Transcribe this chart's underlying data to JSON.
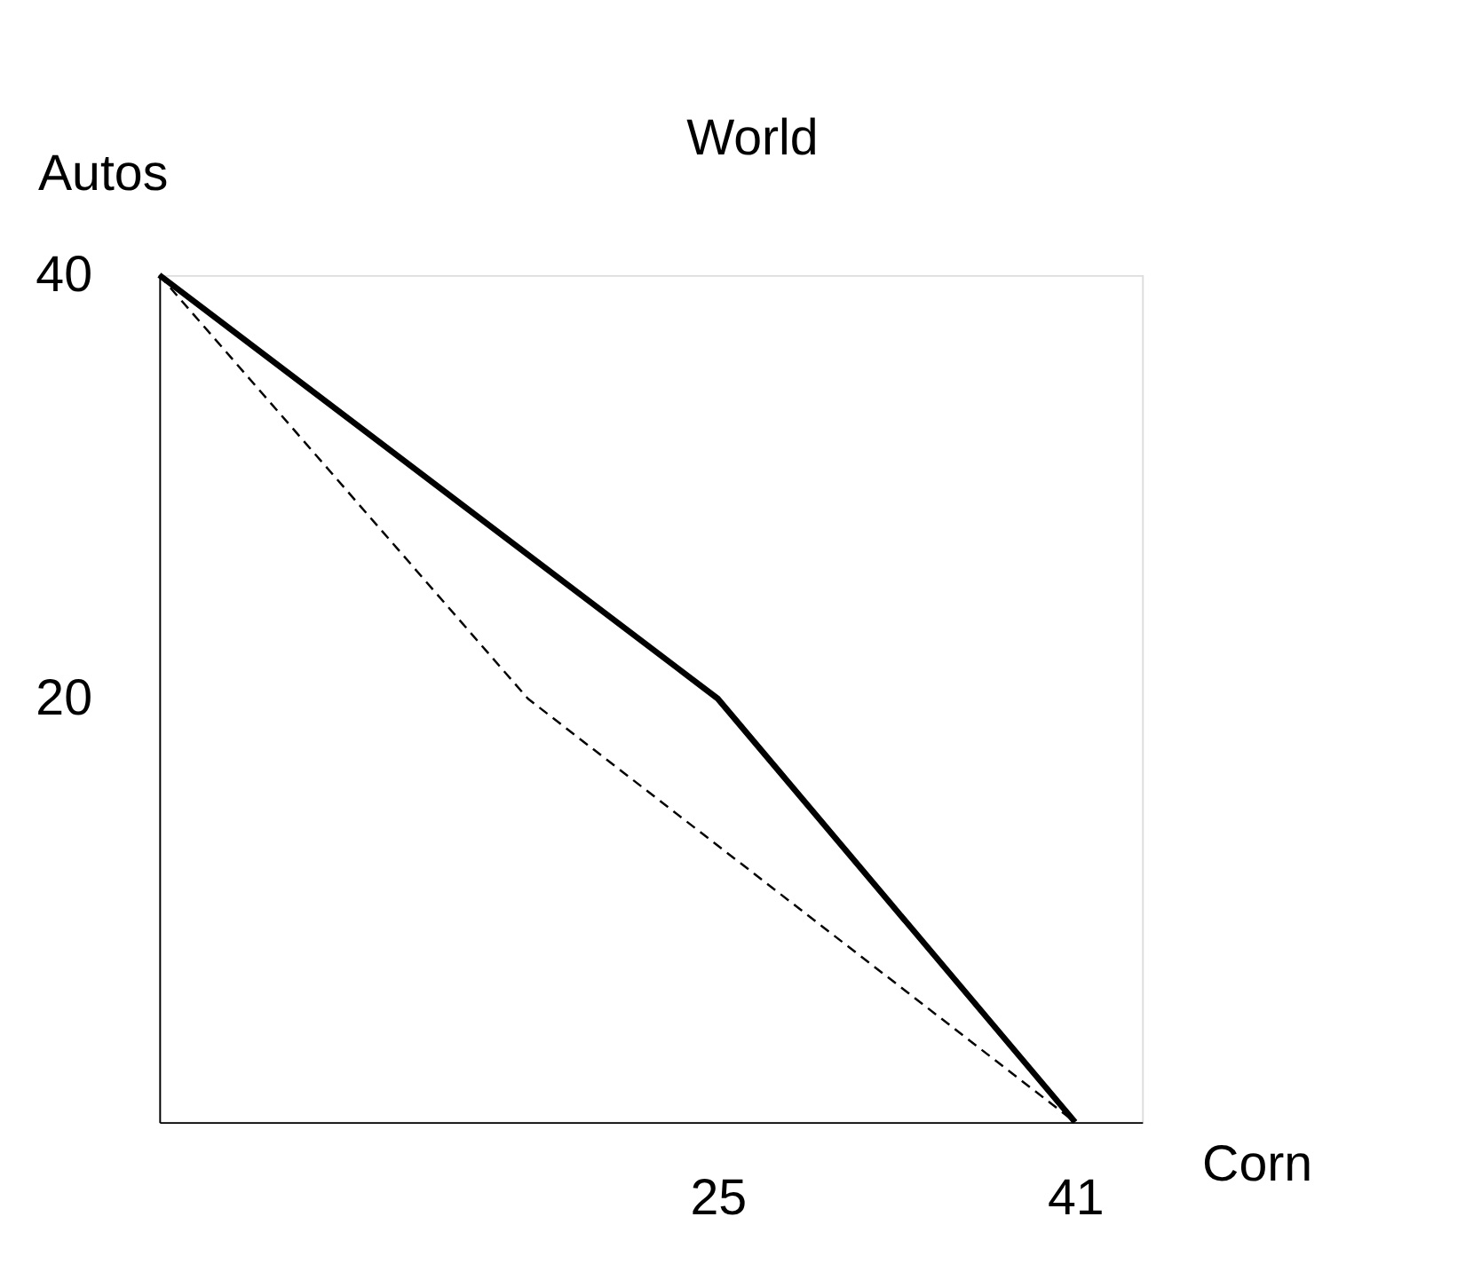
{
  "chart_data": {
    "type": "line",
    "title": "World",
    "xlabel": "Corn",
    "ylabel": "Autos",
    "xlim": [
      0,
      44
    ],
    "xticks": [
      25,
      41
    ],
    "ylim": [
      0,
      40
    ],
    "yticks": [
      20,
      40
    ],
    "grid": false,
    "marker": "none",
    "series": [
      {
        "x": [
          0,
          16.5,
          41
        ],
        "values": [
          40,
          20,
          0
        ],
        "color": "#000000",
        "line_style": "dashed"
      },
      {
        "x": [
          0,
          25,
          41
        ],
        "values": [
          40,
          20,
          0
        ],
        "color": "#000000",
        "line_style": "solid"
      }
    ]
  }
}
